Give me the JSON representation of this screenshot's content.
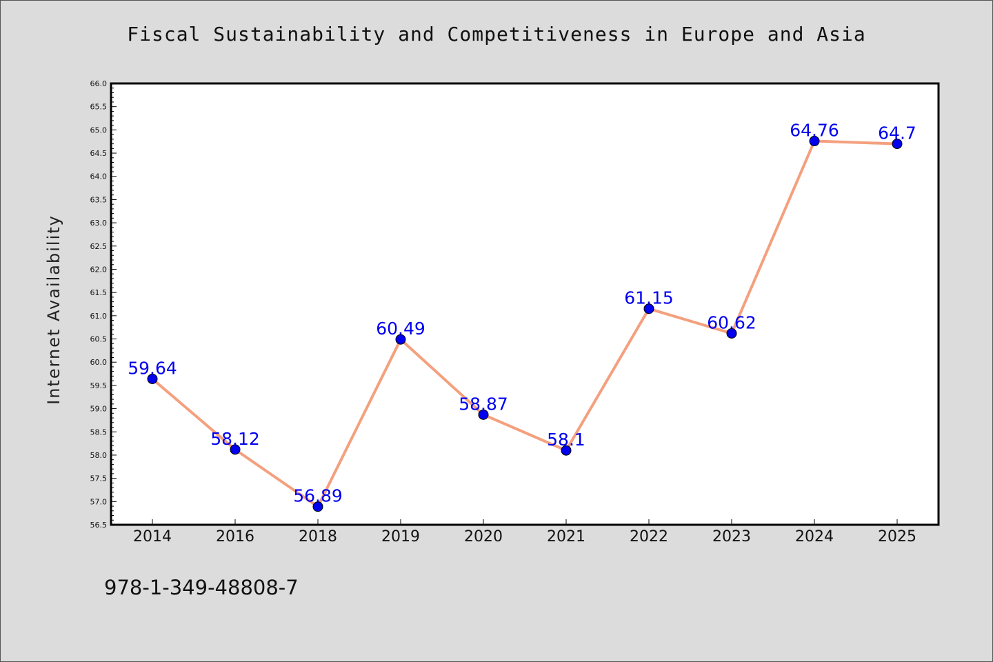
{
  "chart_data": {
    "type": "line",
    "title": "Fiscal Sustainability and Competitiveness in Europe and Asia",
    "ylabel": "Internet Availability",
    "xlabel": "",
    "categories": [
      "2014",
      "2016",
      "2018",
      "2019",
      "2020",
      "2021",
      "2022",
      "2023",
      "2024",
      "2025"
    ],
    "values": [
      59.64,
      58.12,
      56.89,
      60.49,
      58.87,
      58.1,
      61.15,
      60.62,
      64.76,
      64.7
    ],
    "data_labels": [
      "59.64",
      "58.12",
      "56.89",
      "60.49",
      "58.87",
      "58.1",
      "61.15",
      "60.62",
      "64.76",
      "64.7"
    ],
    "ylim": [
      56.5,
      66.0
    ],
    "yticks": [
      "56.5",
      "57.0",
      "57.5",
      "58.0",
      "58.5",
      "59.0",
      "59.5",
      "60.0",
      "60.5",
      "61.0",
      "61.5",
      "62.0",
      "62.5",
      "63.0",
      "63.5",
      "64.0",
      "64.5",
      "65.0",
      "65.5",
      "66.0"
    ],
    "grid": false,
    "legend": "none",
    "line_color": "#f4a07e",
    "marker_color": "#0000ee",
    "label_color": "#0000ee",
    "background_color": "#dcdcdc",
    "plot_background": "#ffffff"
  },
  "footnote": "978-1-349-48808-7"
}
